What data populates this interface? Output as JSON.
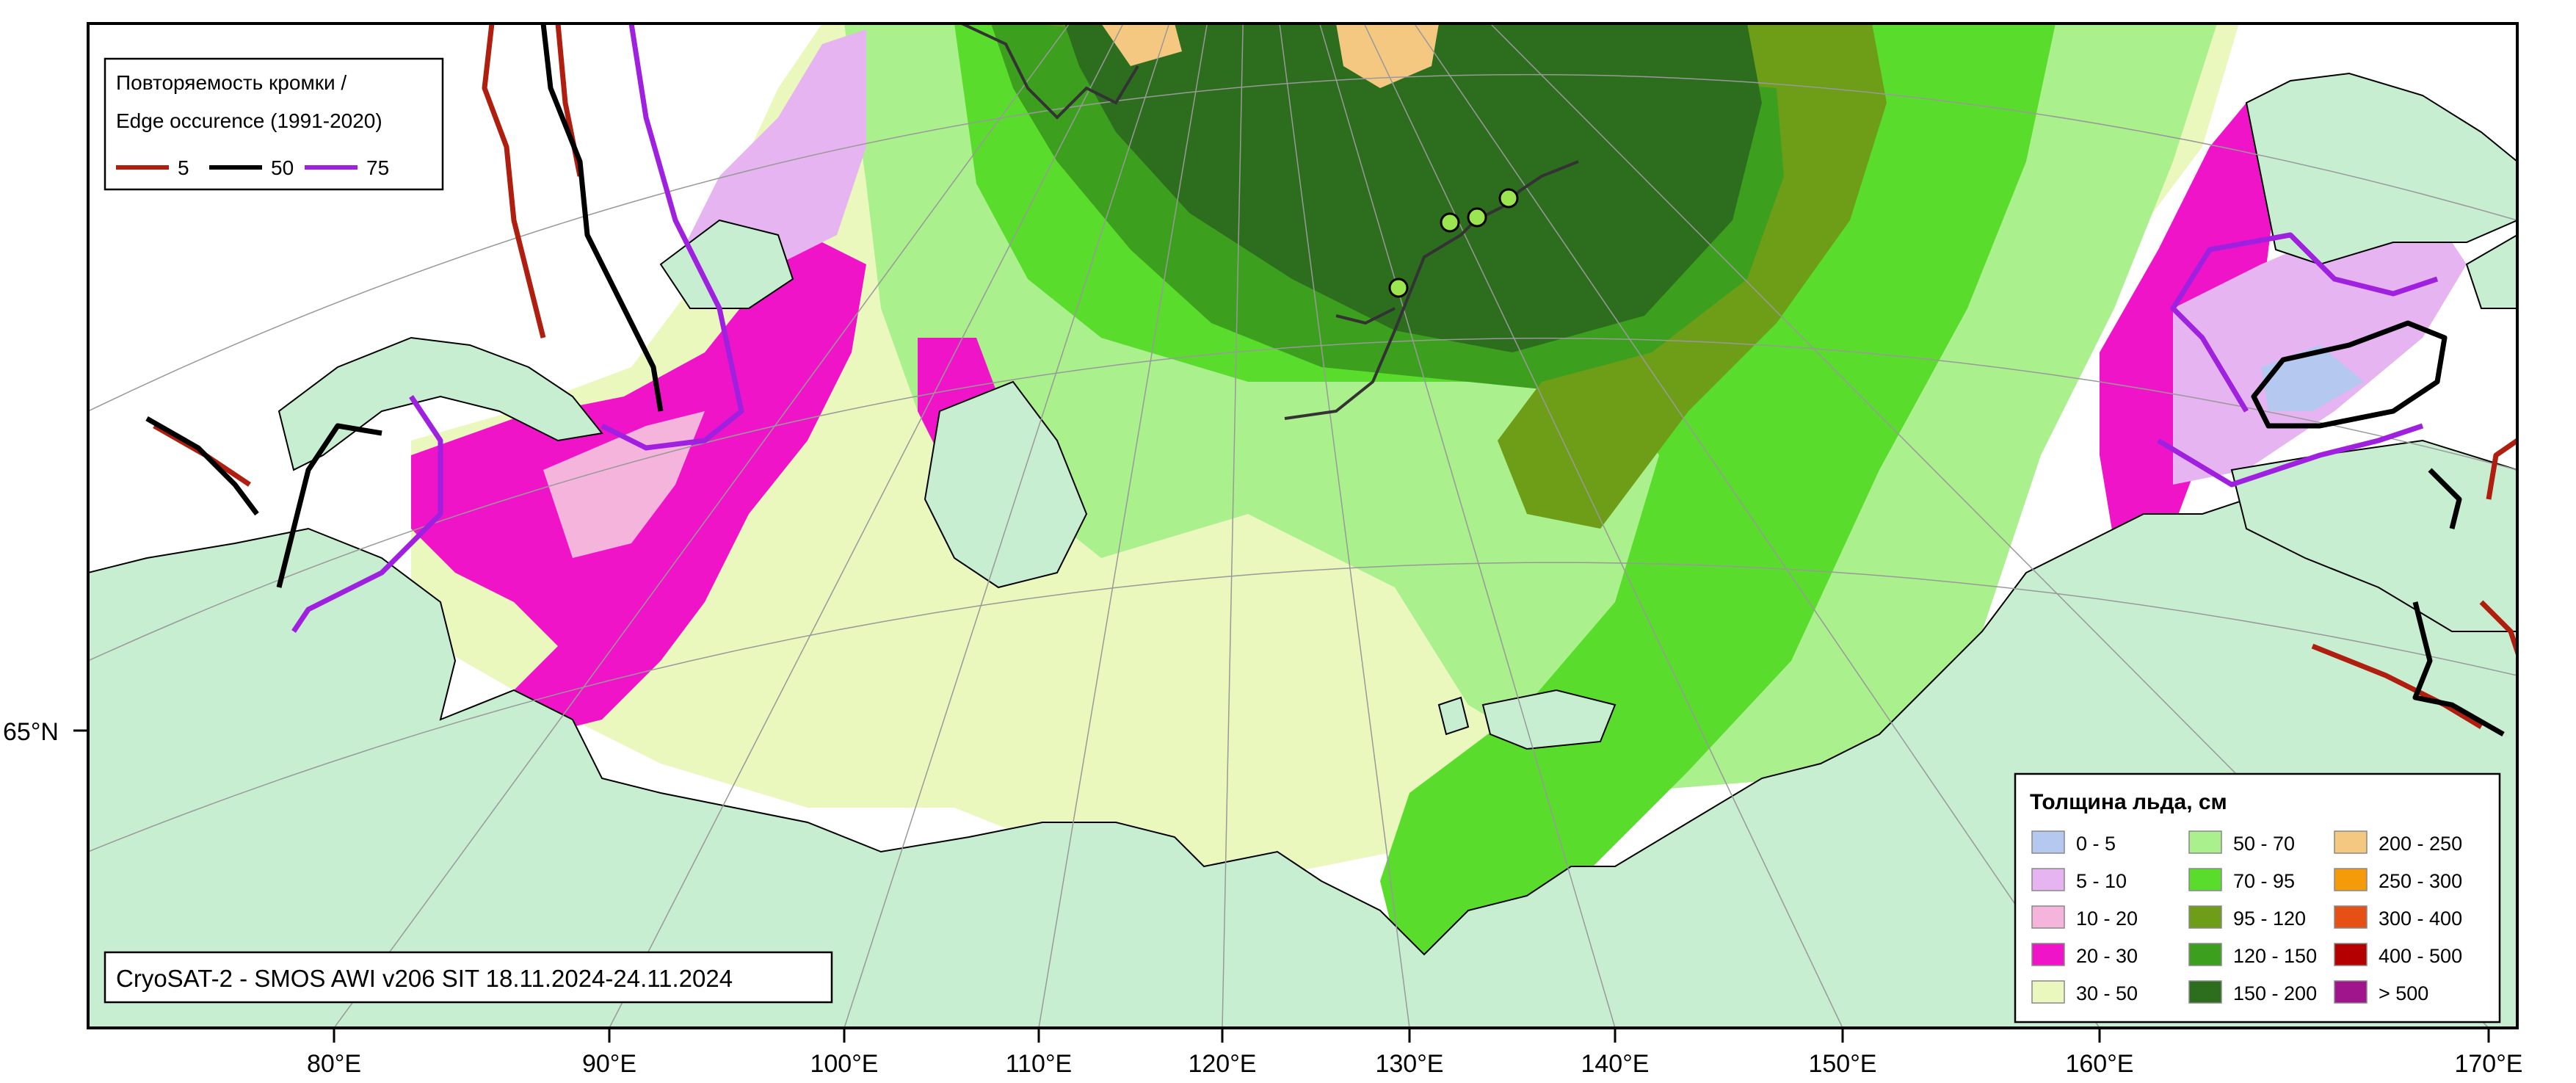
{
  "map": {
    "edge_legend": {
      "title_line1": "Повторяемость кромки /",
      "title_line2": "Edge occurence (1991-2020)",
      "items": [
        {
          "label": "5",
          "color": "#b01e10"
        },
        {
          "label": "50",
          "color": "#000000"
        },
        {
          "label": "75",
          "color": "#a020e0"
        }
      ]
    },
    "thickness_legend": {
      "title": "Толщина льда, см",
      "items": [
        {
          "label": "0 - 5",
          "color": "#b4c8f0"
        },
        {
          "label": "5 - 10",
          "color": "#e6b4f0"
        },
        {
          "label": "10 - 20",
          "color": "#f5b4dc"
        },
        {
          "label": "20 - 30",
          "color": "#f014c8"
        },
        {
          "label": "30 - 50",
          "color": "#eaf8be"
        },
        {
          "label": "50 - 70",
          "color": "#aaf08c"
        },
        {
          "label": "70 - 95",
          "color": "#5adc2d"
        },
        {
          "label": "95 - 120",
          "color": "#6e9e18"
        },
        {
          "label": "120 - 150",
          "color": "#3ca01e"
        },
        {
          "label": "150 - 200",
          "color": "#2d6e1e"
        },
        {
          "label": "200 - 250",
          "color": "#f5c882"
        },
        {
          "label": "250 - 300",
          "color": "#f59b0a"
        },
        {
          "label": "300 - 400",
          "color": "#e65014"
        },
        {
          "label": "400 - 500",
          "color": "#b40000"
        },
        {
          "label": "> 500",
          "color": "#a0148c"
        }
      ]
    },
    "source_label": "CryoSAT-2 - SMOS AWI v206 SIT 18.11.2024-24.11.2024",
    "lon_labels": [
      "80°E",
      "90°E",
      "100°E",
      "110°E",
      "120°E",
      "130°E",
      "140°E",
      "150°E",
      "160°E",
      "170°E"
    ],
    "lat_label": "65°N",
    "colors": {
      "land": "#c8eed2",
      "open_water": "#ffffff",
      "frame": "#000000",
      "drift_track": "#333333",
      "buoy_marker": "#9be650"
    }
  }
}
